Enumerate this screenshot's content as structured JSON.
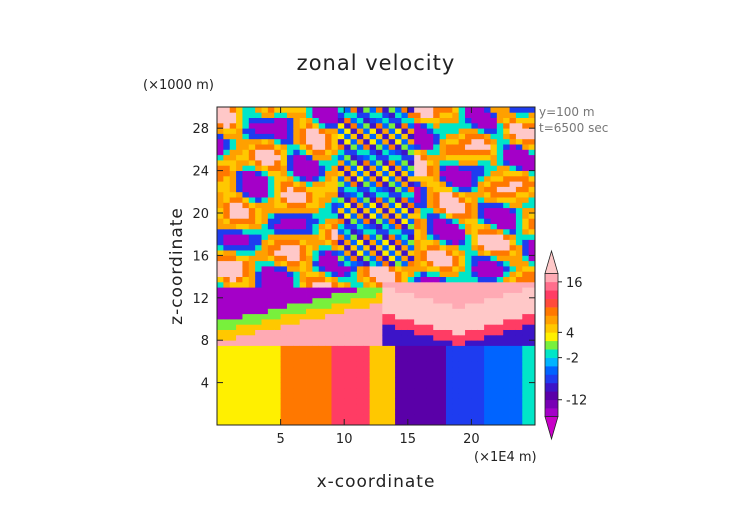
{
  "chart_data": {
    "type": "heatmap",
    "title": "zonal velocity",
    "xlabel": "x-coordinate",
    "ylabel": "z-coordinate",
    "x_unit": "(×1E4 m)",
    "y_unit": "(×1000 m)",
    "annotations": [
      "y=100 m",
      "t=6500 sec"
    ],
    "xlim": [
      0,
      25
    ],
    "ylim": [
      0,
      30
    ],
    "x_ticks": [
      5,
      10,
      15,
      20
    ],
    "y_ticks": [
      4,
      8,
      12,
      16,
      20,
      24,
      28
    ],
    "colorbar": {
      "labels": [
        16,
        4,
        -2,
        -12
      ],
      "levels": [
        -16,
        -14,
        -12,
        -10,
        -8,
        -6,
        -4,
        -2,
        0,
        2,
        4,
        6,
        8,
        10,
        12,
        14,
        16,
        18
      ],
      "colors": [
        "#c800c8",
        "#a400c8",
        "#7800b4",
        "#5a00a8",
        "#3c14c8",
        "#1e3cf0",
        "#0064ff",
        "#00b4ff",
        "#00e6c8",
        "#78f03c",
        "#fff000",
        "#ffc800",
        "#ffa000",
        "#ff7800",
        "#ff4b3c",
        "#ff3c64",
        "#ff6e8c",
        "#ffaab4",
        "#ffc8c8"
      ]
    }
  }
}
